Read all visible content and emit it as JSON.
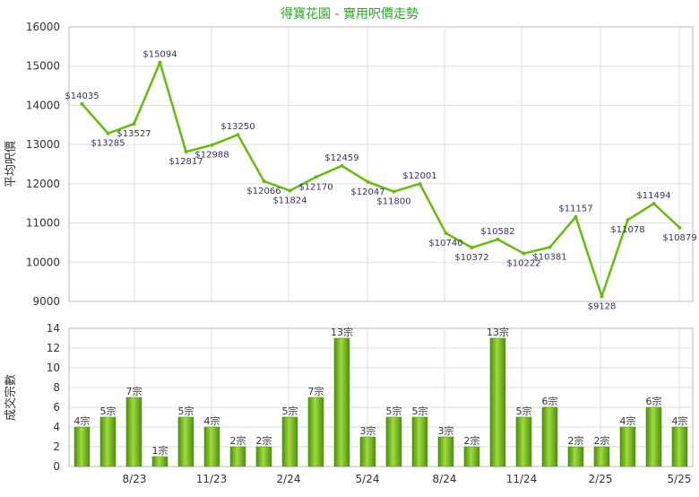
{
  "chart_data": [
    {
      "type": "line",
      "title": "得寶花園 - 實用呎價走勢",
      "ylabel": "平均呎價",
      "ylim": [
        9000,
        16000
      ],
      "y_ticks": [
        9000,
        10000,
        11000,
        12000,
        13000,
        14000,
        15000,
        16000
      ],
      "grid": true,
      "data_labels": [
        "$14035",
        "$13285",
        "$13527",
        "$15094",
        "$12817",
        "$12988",
        "$13250",
        "$12066",
        "$11824",
        "$12170",
        "$12459",
        "$12047",
        "$11800",
        "$12001",
        "$10740",
        "$10372",
        "$10582",
        "$10222",
        "$10381",
        "$11157",
        "$9128",
        "$11078",
        "$11494",
        "$10879"
      ],
      "values": [
        14035,
        13285,
        13527,
        15094,
        12817,
        12988,
        13250,
        12066,
        11824,
        12170,
        12459,
        12047,
        11800,
        12001,
        10740,
        10372,
        10582,
        10222,
        10381,
        11157,
        9128,
        11078,
        11494,
        10879
      ],
      "color": "#66bb11"
    },
    {
      "type": "bar",
      "ylabel": "成交宗數",
      "ylim": [
        0,
        14
      ],
      "y_ticks": [
        0,
        2,
        4,
        6,
        8,
        10,
        12,
        14
      ],
      "x_tick_labels": [
        "8/23",
        "11/23",
        "2/24",
        "5/24",
        "8/24",
        "11/24",
        "2/25",
        "5/25"
      ],
      "grid": true,
      "values": [
        4,
        5,
        7,
        1,
        5,
        4,
        2,
        2,
        5,
        7,
        13,
        3,
        5,
        5,
        3,
        2,
        13,
        5,
        6,
        2,
        2,
        4,
        6,
        4
      ],
      "data_labels": [
        "4宗",
        "5宗",
        "7宗",
        "1宗",
        "5宗",
        "4宗",
        "2宗",
        "2宗",
        "5宗",
        "7宗",
        "13宗",
        "3宗",
        "5宗",
        "5宗",
        "3宗",
        "2宗",
        "13宗",
        "5宗",
        "6宗",
        "2宗",
        "2宗",
        "4宗",
        "6宗",
        "4宗"
      ],
      "color": "#77bb22"
    }
  ]
}
